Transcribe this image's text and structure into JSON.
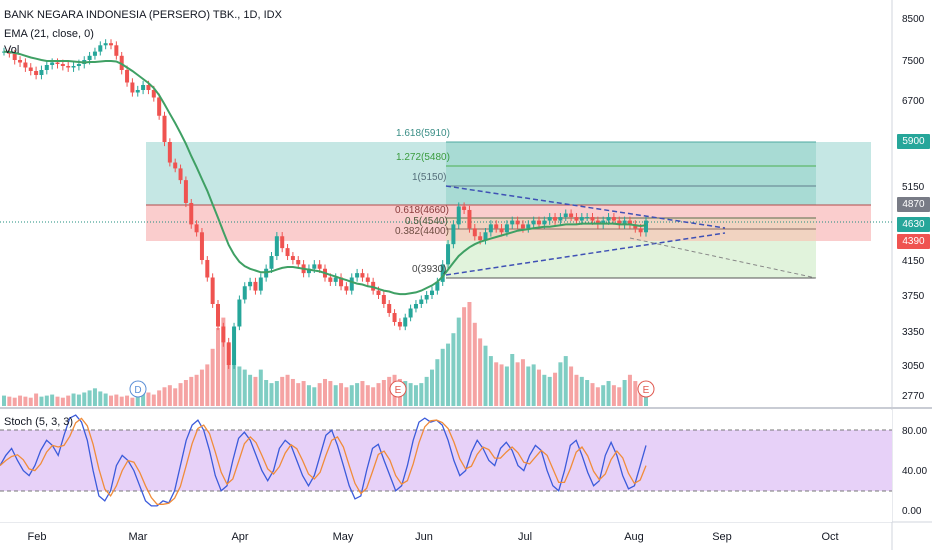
{
  "header": {
    "title": "BANK NEGARA INDONESIA (PERSERO) TBK., 1D, IDX",
    "indicator": "EMA (21, close, 0)",
    "volume": "Vol"
  },
  "colors": {
    "up": "#26a69a",
    "down": "#ef5350",
    "ema": "#3fa064",
    "stoch_k": "#3b5bdb",
    "stoch_d": "#f08c3a",
    "stoch_bg": "#e3c9f7",
    "fib_teal": "#b2dfdb",
    "fib_red": "#f8bcbc",
    "fib_green": "#d9f0d3"
  },
  "price_tags": {
    "t1": "5900",
    "t2": "4870",
    "t3": "4630",
    "t4": "4390"
  },
  "fib_labels": {
    "l1618": "1.618(5910)",
    "l1272": "1.272(5480)",
    "l1": "1(5150)",
    "l0618": "0.618(4660)",
    "l05": "0.5(4540)",
    "l0382": "0.382(4400)",
    "l0": "0(3930)"
  },
  "events": {
    "d": "D",
    "e1": "E",
    "e2": "E"
  },
  "stoch": {
    "label": "Stoch (5, 3, 3)"
  },
  "chart_data": {
    "type": "candlestick",
    "x_ticks": [
      "Feb",
      "Mar",
      "Apr",
      "May",
      "Jun",
      "Jul",
      "Aug",
      "Sep",
      "Oct"
    ],
    "y_ticks": [
      8500,
      7500,
      6700,
      5900,
      5150,
      4870,
      4630,
      4390,
      4150,
      3750,
      3350,
      3050,
      2770
    ],
    "stoch_ticks": [
      "80.00",
      "40.00",
      "0.00"
    ],
    "closes": [
      7700,
      7650,
      7500,
      7450,
      7350,
      7280,
      7200,
      7300,
      7400,
      7450,
      7420,
      7380,
      7350,
      7380,
      7420,
      7500,
      7600,
      7700,
      7850,
      7900,
      7850,
      7600,
      7300,
      7050,
      6850,
      6900,
      7000,
      6900,
      6750,
      6400,
      5900,
      5550,
      5450,
      5250,
      4900,
      4600,
      4500,
      4150,
      3950,
      3650,
      3400,
      3250,
      3050,
      3400,
      3700,
      3850,
      3900,
      3800,
      3950,
      4050,
      4200,
      4450,
      4300,
      4200,
      4150,
      4100,
      4000,
      4050,
      4100,
      4050,
      3950,
      3900,
      3950,
      3850,
      3800,
      3950,
      4000,
      3950,
      3900,
      3800,
      3750,
      3650,
      3550,
      3450,
      3400,
      3500,
      3600,
      3650,
      3700,
      3750,
      3800,
      3900,
      4100,
      4350,
      4600,
      4850,
      4800,
      4550,
      4450,
      4400,
      4500,
      4600,
      4550,
      4500,
      4600,
      4650,
      4600,
      4550,
      4600,
      4650,
      4600,
      4650,
      4700,
      4650,
      4700,
      4750,
      4700,
      4650,
      4700,
      4700,
      4650,
      4600,
      4650,
      4700,
      4650,
      4600,
      4650,
      4600,
      4550,
      4500,
      4650
    ],
    "ema_21": [
      7700,
      7690,
      7670,
      7640,
      7600,
      7560,
      7530,
      7500,
      7480,
      7480,
      7480,
      7480,
      7480,
      7470,
      7460,
      7450,
      7460,
      7460,
      7470,
      7480,
      7480,
      7470,
      7420,
      7350,
      7280,
      7200,
      7120,
      7040,
      6940,
      6800,
      6620,
      6440,
      6260,
      6070,
      5870,
      5660,
      5470,
      5270,
      5080,
      4880,
      4690,
      4510,
      4340,
      4220,
      4130,
      4080,
      4050,
      4030,
      4010,
      4010,
      4020,
      4040,
      4060,
      4070,
      4070,
      4060,
      4050,
      4040,
      4030,
      4020,
      4000,
      3980,
      3960,
      3940,
      3920,
      3900,
      3880,
      3870,
      3850,
      3840,
      3820,
      3800,
      3790,
      3770,
      3760,
      3760,
      3770,
      3780,
      3800,
      3830,
      3860,
      3900,
      3960,
      4040,
      4120,
      4200,
      4260,
      4310,
      4350,
      4380,
      4400,
      4420,
      4440,
      4460,
      4480,
      4500,
      4520,
      4530,
      4540,
      4550,
      4560,
      4570,
      4570,
      4580,
      4590,
      4600,
      4600,
      4600,
      4610,
      4610,
      4610,
      4610,
      4610,
      4610,
      4610,
      4600,
      4600,
      4600,
      4590,
      4580,
      4590
    ],
    "volumes": [
      10,
      9,
      8,
      10,
      9,
      8,
      12,
      9,
      10,
      11,
      9,
      8,
      10,
      12,
      11,
      13,
      15,
      17,
      14,
      12,
      10,
      11,
      9,
      10,
      8,
      12,
      14,
      13,
      11,
      15,
      18,
      20,
      17,
      22,
      25,
      28,
      30,
      35,
      40,
      55,
      75,
      85,
      60,
      45,
      38,
      35,
      30,
      28,
      35,
      25,
      22,
      24,
      28,
      30,
      26,
      22,
      24,
      20,
      18,
      22,
      26,
      24,
      20,
      22,
      18,
      20,
      22,
      24,
      20,
      18,
      22,
      25,
      28,
      30,
      26,
      24,
      22,
      20,
      22,
      28,
      35,
      45,
      55,
      60,
      70,
      85,
      95,
      100,
      80,
      65,
      58,
      48,
      42,
      40,
      38,
      50,
      42,
      45,
      38,
      40,
      35,
      30,
      28,
      32,
      42,
      48,
      38,
      30,
      28,
      25,
      22,
      18,
      20,
      24,
      20,
      18,
      25,
      30,
      24,
      20,
      18
    ],
    "fib_levels": [
      {
        "ratio": "1.618",
        "price": 5910
      },
      {
        "ratio": "1.272",
        "price": 5480
      },
      {
        "ratio": "1",
        "price": 5150
      },
      {
        "ratio": "0.618",
        "price": 4660
      },
      {
        "ratio": "0.5",
        "price": 4540
      },
      {
        "ratio": "0.382",
        "price": 4400
      },
      {
        "ratio": "0",
        "price": 3930
      }
    ],
    "stoch_k": [
      45,
      55,
      62,
      50,
      40,
      35,
      45,
      60,
      70,
      65,
      55,
      75,
      92,
      95,
      88,
      70,
      40,
      15,
      10,
      20,
      45,
      55,
      50,
      40,
      25,
      10,
      5,
      5,
      10,
      8,
      20,
      45,
      70,
      85,
      90,
      80,
      60,
      35,
      20,
      25,
      50,
      72,
      78,
      70,
      55,
      40,
      30,
      40,
      62,
      70,
      65,
      50,
      35,
      25,
      35,
      55,
      75,
      80,
      65,
      45,
      25,
      12,
      15,
      40,
      62,
      66,
      50,
      35,
      20,
      25,
      45,
      70,
      88,
      92,
      88,
      90,
      85,
      70,
      50,
      35,
      40,
      58,
      70,
      62,
      50,
      45,
      62,
      68,
      60,
      45,
      40,
      55,
      65,
      60,
      40,
      25,
      20,
      40,
      65,
      70,
      55,
      38,
      25,
      30,
      55,
      68,
      55,
      35,
      22,
      25,
      45,
      65
    ]
  }
}
